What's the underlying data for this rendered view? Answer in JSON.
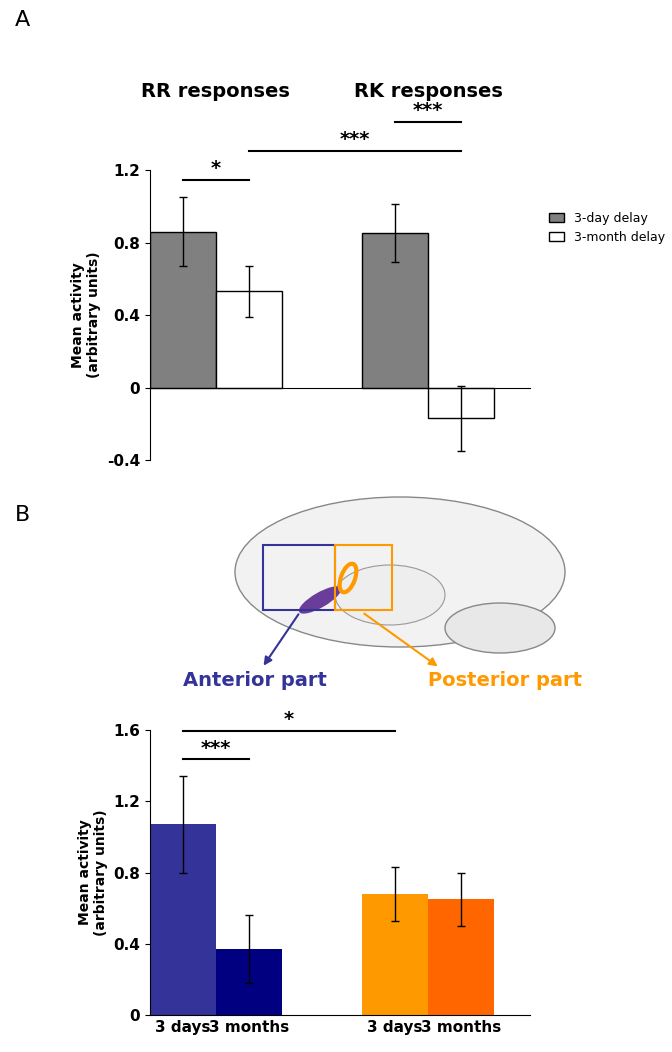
{
  "chart_data": [
    {
      "panel": "A",
      "type": "bar",
      "categories": [
        "RR responses",
        "RK responses"
      ],
      "series": [
        {
          "name": "3-day delay",
          "color": "#808080",
          "values": [
            0.86,
            0.85
          ],
          "errors": [
            0.19,
            0.16
          ]
        },
        {
          "name": "3-month delay",
          "color": "#ffffff",
          "values": [
            0.53,
            -0.17
          ],
          "errors": [
            0.14,
            0.18
          ]
        }
      ],
      "ylabel": "Mean activity\n(arbitrary units)",
      "ylim": [
        -0.4,
        1.2
      ],
      "yticks": [
        -0.4,
        0,
        0.4,
        0.8,
        1.2
      ],
      "legend": "right",
      "annotations": [
        {
          "text": "*",
          "bars": [
            [
              0,
              0
            ],
            [
              0,
              1
            ]
          ]
        },
        {
          "text": "***",
          "bars": [
            [
              0,
              1
            ],
            [
              1,
              1
            ]
          ]
        },
        {
          "text": "***",
          "bars": [
            [
              1,
              0
            ],
            [
              1,
              1
            ]
          ]
        }
      ]
    },
    {
      "panel": "B",
      "type": "bar",
      "categories": [
        "3 days",
        "3 months",
        "3 days",
        "3 months"
      ],
      "groups": [
        {
          "label": "Anterior part",
          "color": "#333399",
          "members": [
            0,
            1
          ]
        },
        {
          "label": "Posterior part",
          "color": "#ff9900",
          "members": [
            2,
            3
          ]
        }
      ],
      "values": [
        1.07,
        0.37,
        0.68,
        0.65
      ],
      "errors": [
        0.27,
        0.19,
        0.15,
        0.15
      ],
      "colors": [
        "#333399",
        "#000080",
        "#ff9900",
        "#ff6600"
      ],
      "ylabel": "Mean activity\n(arbitrary units)",
      "ylim": [
        0,
        1.6
      ],
      "yticks": [
        0,
        0.4,
        0.8,
        1.2,
        1.6
      ],
      "annotations": [
        {
          "text": "***",
          "bars": [
            0,
            1
          ]
        },
        {
          "text": "*",
          "bars": [
            0,
            2
          ]
        }
      ]
    }
  ]
}
